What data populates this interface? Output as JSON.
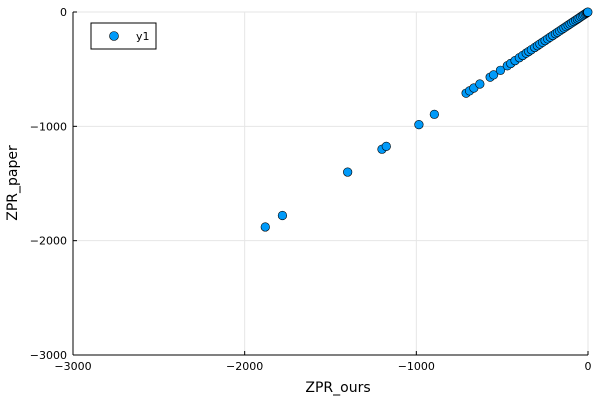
{
  "chart_data": {
    "type": "scatter",
    "xlabel": "ZPR_ours",
    "ylabel": "ZPR_paper",
    "xlim": [
      -3000,
      0
    ],
    "ylim": [
      -3000,
      0
    ],
    "xticks": [
      -3000,
      -2000,
      -1000,
      0
    ],
    "yticks": [
      -3000,
      -2000,
      -1000,
      0
    ],
    "xtick_labels": [
      "−3000",
      "−2000",
      "−1000",
      "0"
    ],
    "ytick_labels": [
      "−3000",
      "−2000",
      "−1000",
      "0"
    ],
    "grid": true,
    "legend": {
      "position": "top-left",
      "entries": [
        "y1"
      ]
    },
    "colors": {
      "marker": "#009af9",
      "marker_edge": "#000000",
      "grid": "#e6e6e6",
      "frame": "#000000"
    },
    "series": [
      {
        "name": "y1",
        "points": [
          [
            -1880,
            -1880
          ],
          [
            -1780,
            -1780
          ],
          [
            -1400,
            -1400
          ],
          [
            -1200,
            -1200
          ],
          [
            -1175,
            -1175
          ],
          [
            -985,
            -985
          ],
          [
            -895,
            -895
          ],
          [
            -710,
            -710
          ],
          [
            -690,
            -690
          ],
          [
            -665,
            -665
          ],
          [
            -630,
            -630
          ],
          [
            -570,
            -570
          ],
          [
            -550,
            -550
          ],
          [
            -510,
            -510
          ],
          [
            -470,
            -470
          ],
          [
            -450,
            -450
          ],
          [
            -425,
            -425
          ],
          [
            -400,
            -400
          ],
          [
            -380,
            -380
          ],
          [
            -360,
            -360
          ],
          [
            -345,
            -345
          ],
          [
            -330,
            -330
          ],
          [
            -310,
            -310
          ],
          [
            -295,
            -295
          ],
          [
            -280,
            -280
          ],
          [
            -265,
            -265
          ],
          [
            -250,
            -250
          ],
          [
            -235,
            -235
          ],
          [
            -220,
            -220
          ],
          [
            -205,
            -205
          ],
          [
            -190,
            -190
          ],
          [
            -178,
            -178
          ],
          [
            -165,
            -165
          ],
          [
            -152,
            -152
          ],
          [
            -140,
            -140
          ],
          [
            -128,
            -128
          ],
          [
            -116,
            -116
          ],
          [
            -105,
            -105
          ],
          [
            -94,
            -94
          ],
          [
            -83,
            -83
          ],
          [
            -72,
            -72
          ],
          [
            -62,
            -62
          ],
          [
            -52,
            -52
          ],
          [
            -42,
            -42
          ],
          [
            -33,
            -33
          ],
          [
            -24,
            -24
          ],
          [
            -16,
            -16
          ],
          [
            -9,
            -9
          ],
          [
            -4,
            -4
          ],
          [
            -1,
            -1
          ]
        ]
      }
    ]
  }
}
